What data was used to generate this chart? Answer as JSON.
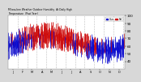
{
  "title": "Milwaukee Weather Outdoor Humidity At Daily High Temperature (Past Year)",
  "background_color": "#d8d8d8",
  "plot_bg": "#ffffff",
  "bar_color_blue": "#0000cc",
  "bar_color_red": "#cc0000",
  "grid_color": "#888888",
  "ylim": [
    30,
    100
  ],
  "n_points": 365,
  "seed": 42,
  "yticks": [
    40,
    50,
    60,
    70,
    80,
    90,
    100
  ],
  "ytick_labels": [
    "40",
    "50",
    "60",
    "70",
    "80",
    "90",
    "100"
  ],
  "month_labels": [
    "J",
    "F",
    "M",
    "A",
    "M",
    "J",
    "J",
    "A",
    "S",
    "O",
    "N",
    "D"
  ]
}
